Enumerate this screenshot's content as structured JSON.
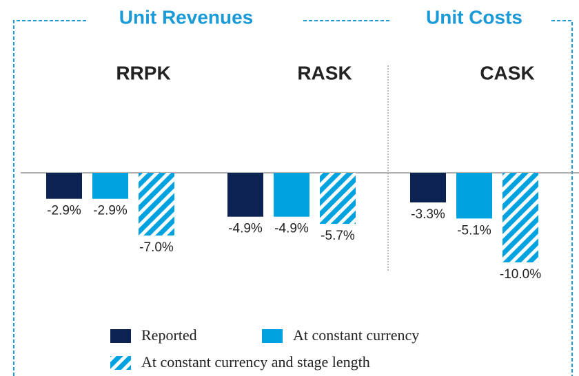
{
  "chart_data": {
    "type": "bar",
    "annotations": [
      "Unit Revenues",
      "Unit Costs"
    ],
    "categories": [
      "RRPK",
      "RASK",
      "CASK"
    ],
    "series": [
      {
        "name": "Reported",
        "color": "#0b2252",
        "values": [
          -2.9,
          -4.9,
          -3.3
        ],
        "value_labels": [
          "-2.9%",
          "-4.9%",
          "-3.3%"
        ]
      },
      {
        "name": "At constant currency",
        "color": "#00a3e0",
        "values": [
          -2.9,
          -4.9,
          -5.1
        ],
        "value_labels": [
          "-2.9%",
          "-4.9%",
          "-5.1%"
        ]
      },
      {
        "name": "At constant currency and stage length",
        "color": "#00a3e0",
        "pattern": "hatch",
        "values": [
          -7.0,
          -5.7,
          -10.0
        ],
        "value_labels": [
          "-7.0%",
          "-5.7%",
          "-10.0%"
        ]
      }
    ],
    "ylim": [
      -12,
      0
    ],
    "legend": "bottom"
  }
}
